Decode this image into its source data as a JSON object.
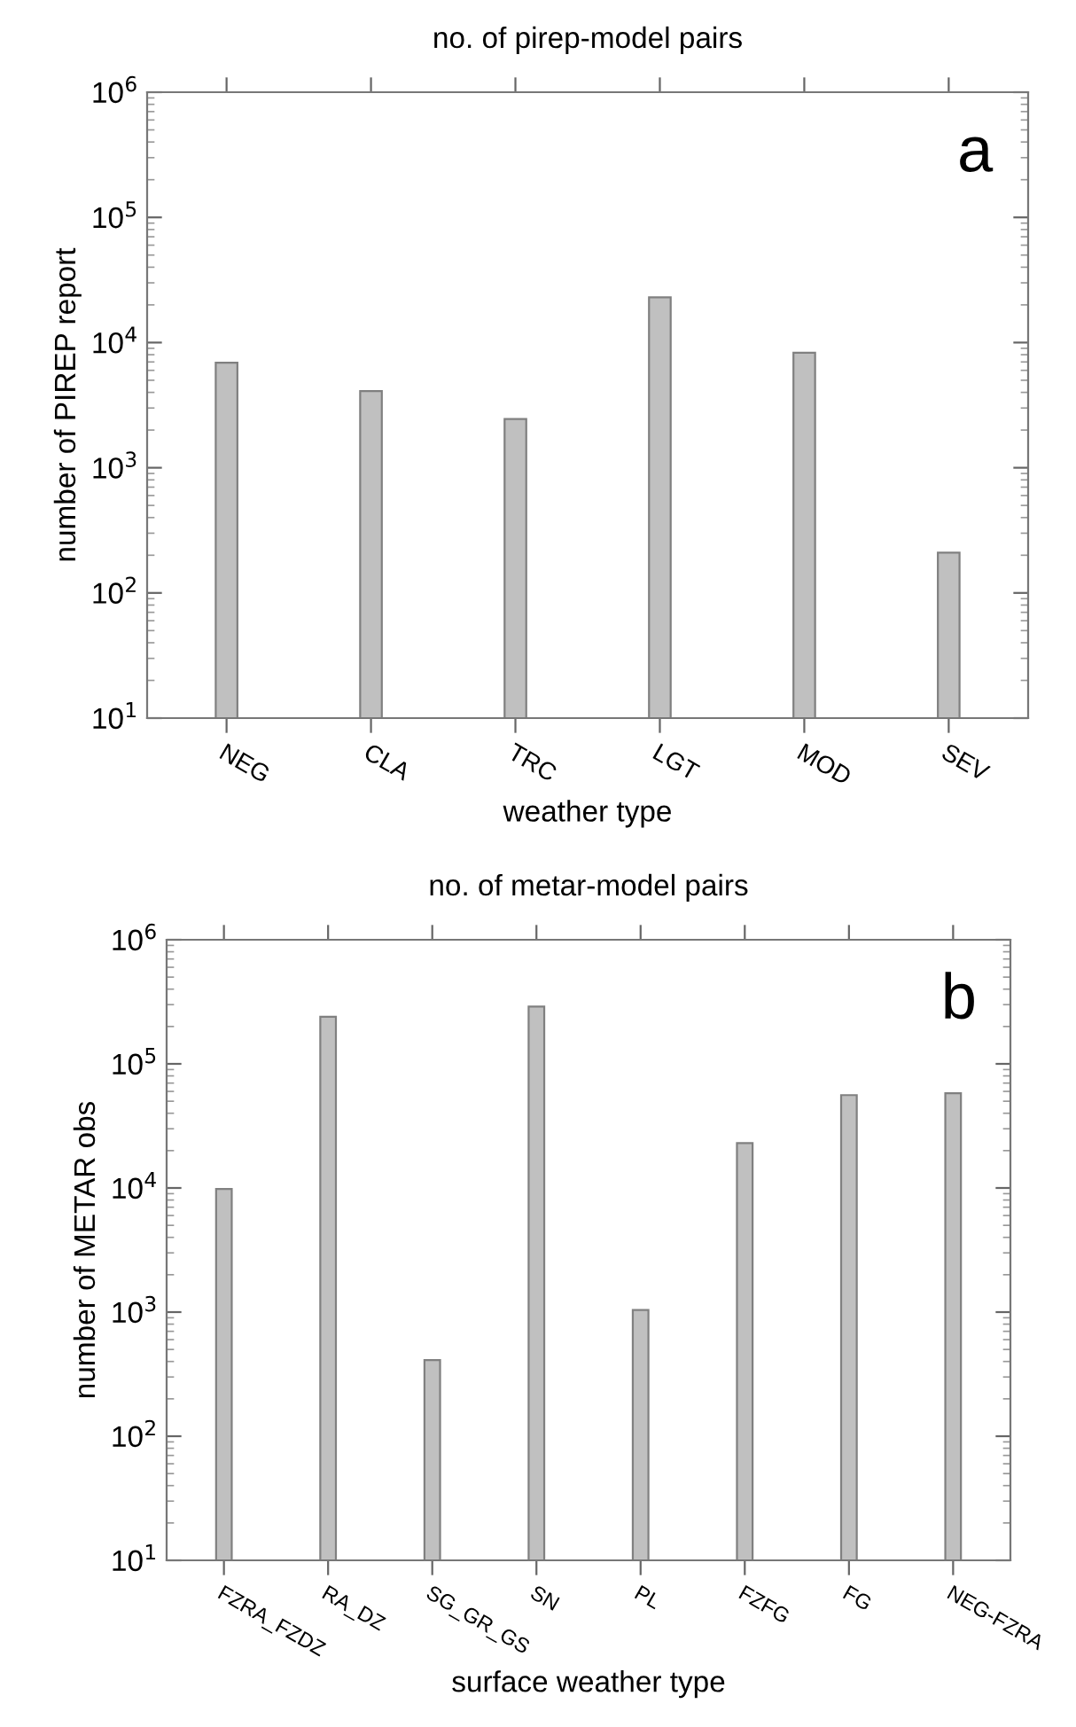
{
  "chart_data": [
    {
      "type": "bar",
      "title": "no. of pirep-model pairs",
      "xlabel": "weather type",
      "ylabel": "number of PIREP report",
      "categories": [
        "NEG",
        "CLA",
        "TRC",
        "LGT",
        "MOD",
        "SEV"
      ],
      "values": [
        6900,
        4100,
        2450,
        23000,
        8300,
        210
      ],
      "color": "#c0c0c0",
      "log": "y",
      "ylim": [
        10,
        1000000
      ],
      "yticks": [
        {
          "value": 10,
          "label": "10$^{1}$"
        },
        {
          "value": 100,
          "label": "10$^{2}$"
        },
        {
          "value": 1000,
          "label": "10$^{3}$"
        },
        {
          "value": 10000,
          "label": "10$^{4}$"
        },
        {
          "value": 100000,
          "label": "10$^{5}$"
        },
        {
          "value": 1000000,
          "label": "10$^{6}$"
        }
      ],
      "annotations": [
        "a"
      ]
    },
    {
      "type": "bar",
      "title": "no. of metar-model pairs",
      "xlabel": "surface weather type",
      "ylabel": "number of METAR obs",
      "categories": [
        "FZRA_FZDZ",
        "RA_DZ",
        "SG_GR_GS",
        "SN",
        "PL",
        "FZFG",
        "FG",
        "NEG-FZRA"
      ],
      "values": [
        9800,
        240000,
        410,
        290000,
        1040,
        23000,
        56000,
        58000
      ],
      "color": "#c0c0c0",
      "log": "y",
      "ylim": [
        10,
        1000000
      ],
      "yticks": [
        {
          "value": 10,
          "label": "10$^{1}$"
        },
        {
          "value": 100,
          "label": "10$^{2}$"
        },
        {
          "value": 1000,
          "label": "10$^{3}$"
        },
        {
          "value": 10000,
          "label": "10$^{4}$"
        },
        {
          "value": 100000,
          "label": "10$^{5}$"
        },
        {
          "value": 1000000,
          "label": "10$^{6}$"
        }
      ],
      "annotations": [
        "b"
      ]
    }
  ]
}
